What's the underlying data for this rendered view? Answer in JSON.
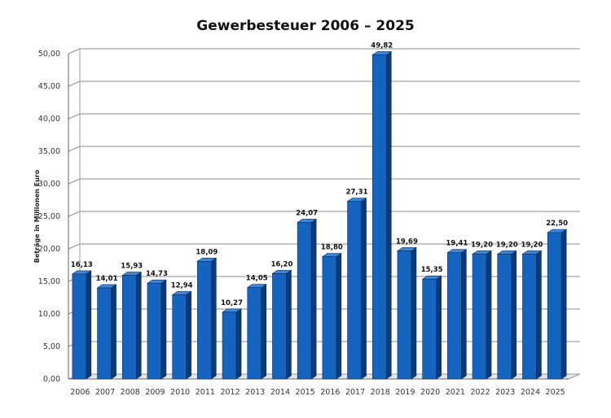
{
  "chart_data": {
    "type": "bar",
    "title": "Gewerbesteuer 2006 – 2025",
    "xlabel": "",
    "ylabel": "Beträge in Millionen Euro",
    "categories": [
      "2006",
      "2007",
      "2008",
      "2009",
      "2010",
      "2011",
      "2012",
      "2013",
      "2014",
      "2015",
      "2016",
      "2017",
      "2018",
      "2019",
      "2020",
      "2021",
      "2022",
      "2023",
      "2024",
      "2025"
    ],
    "values": [
      16.13,
      14.01,
      15.93,
      14.73,
      12.94,
      18.09,
      10.27,
      14.05,
      16.2,
      24.07,
      18.8,
      27.31,
      49.82,
      19.69,
      15.35,
      19.41,
      19.2,
      19.2,
      19.2,
      22.5
    ],
    "value_labels": [
      "16,13",
      "14,01",
      "15,93",
      "14,73",
      "12,94",
      "18,09",
      "10,27",
      "14,05",
      "16,20",
      "24,07",
      "18,80",
      "27,31",
      "49,82",
      "19,69",
      "15,35",
      "19,41",
      "19,20",
      "19,20",
      "19,20",
      "22,50"
    ],
    "yticks": [
      "0,00",
      "5,00",
      "10,00",
      "15,00",
      "20,00",
      "25,00",
      "30,00",
      "35,00",
      "40,00",
      "45,00",
      "50,00"
    ],
    "ylim": [
      0,
      50
    ],
    "grid": true,
    "bar_color": "#1565c0",
    "bar_side_color": "#0b3a78",
    "bar_top_color": "#3f86d6"
  }
}
